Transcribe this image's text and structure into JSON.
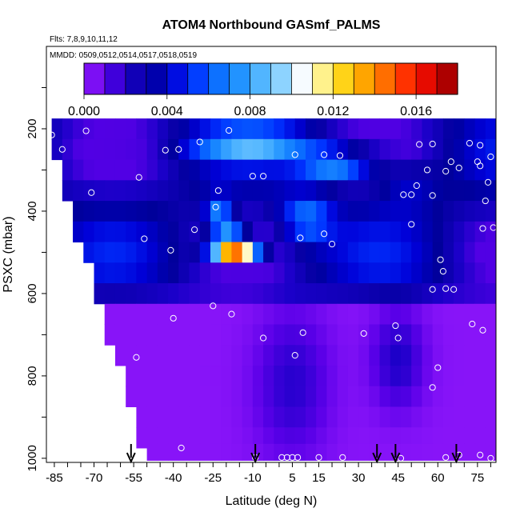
{
  "chart_data": {
    "type": "heatmap",
    "title": "ATOM4 Northbound GASmf_PALMS",
    "subtitle_flights": "Flts: 7,8,9,10,11,12",
    "subtitle_dates": "MMDD: 0509,0512,0514,0517,0518,0519",
    "xlabel": "Latitude (deg N)",
    "ylabel": "PSXC (mbar)",
    "xlim": [
      -88,
      82
    ],
    "ylim": [
      1010,
      0
    ],
    "x_ticks": [
      -85,
      -70,
      -55,
      -40,
      -25,
      -10,
      5,
      15,
      30,
      45,
      60,
      75
    ],
    "y_ticks": [
      200,
      400,
      600,
      800,
      1000
    ],
    "colorbar": {
      "range": [
        0,
        0.018
      ],
      "tick_values": [
        0,
        0.004,
        0.008,
        0.012,
        0.016
      ],
      "tick_labels": [
        "0.000",
        "0.004",
        "0.008",
        "0.012",
        "0.016"
      ],
      "colors": [
        "#9a1cff",
        "#5a00e8",
        "#1a00c8",
        "#00009a",
        "#0000d8",
        "#0033ff",
        "#0a6cff",
        "#1e90ff",
        "#4fb4ff",
        "#8fd4ff",
        "#ffffff",
        "#fff07a",
        "#ffcc00",
        "#ff9800",
        "#ff5c00",
        "#ff1a00",
        "#d40000",
        "#8b0000"
      ]
    },
    "pressure_levels": [
      200,
      250,
      300,
      350,
      400,
      450,
      500,
      550,
      600,
      650,
      700,
      750,
      800,
      850,
      900,
      950,
      990
    ],
    "latitude_bins": [
      -84,
      -80,
      -76,
      -72,
      -68,
      -64,
      -60,
      -56,
      -52,
      -48,
      -44,
      -40,
      -36,
      -32,
      -28,
      -24,
      -20,
      -16,
      -12,
      -8,
      -4,
      0,
      4,
      8,
      12,
      16,
      20,
      24,
      28,
      32,
      36,
      40,
      44,
      48,
      52,
      56,
      60,
      64,
      68,
      72,
      76,
      80
    ],
    "values_summary": {
      "max_value": 0.0155,
      "max_location": {
        "latitude": -17,
        "pressure": 490
      },
      "secondary_high": {
        "latitude": -20,
        "pressure": 440,
        "value": 0.011
      },
      "upper_band_peak": {
        "latitude": -10,
        "pressure": 230,
        "value": 0.0085
      },
      "boundary_layer_value": 0.0003
    },
    "sample_points": [
      {
        "lat": -86,
        "p": 215
      },
      {
        "lat": -73,
        "p": 205
      },
      {
        "lat": -82,
        "p": 250
      },
      {
        "lat": -71,
        "p": 355
      },
      {
        "lat": -53,
        "p": 318
      },
      {
        "lat": -51,
        "p": 467
      },
      {
        "lat": -41,
        "p": 495
      },
      {
        "lat": -43,
        "p": 252
      },
      {
        "lat": -38,
        "p": 250
      },
      {
        "lat": -30,
        "p": 232
      },
      {
        "lat": -32,
        "p": 445
      },
      {
        "lat": -19,
        "p": 204
      },
      {
        "lat": -23,
        "p": 350
      },
      {
        "lat": -24,
        "p": 390
      },
      {
        "lat": -10,
        "p": 315
      },
      {
        "lat": -6,
        "p": 315
      },
      {
        "lat": 6,
        "p": 263
      },
      {
        "lat": 17,
        "p": 263
      },
      {
        "lat": 23,
        "p": 265
      },
      {
        "lat": 8,
        "p": 465
      },
      {
        "lat": 20,
        "p": 480
      },
      {
        "lat": 17,
        "p": 455
      },
      {
        "lat": -40,
        "p": 660
      },
      {
        "lat": -25,
        "p": 630
      },
      {
        "lat": -18,
        "p": 650
      },
      {
        "lat": -6,
        "p": 708
      },
      {
        "lat": 6,
        "p": 750
      },
      {
        "lat": 9,
        "p": 695
      },
      {
        "lat": 32,
        "p": 697
      },
      {
        "lat": 44,
        "p": 678
      },
      {
        "lat": 45,
        "p": 708
      },
      {
        "lat": 50,
        "p": 360
      },
      {
        "lat": 50,
        "p": 432
      },
      {
        "lat": 47,
        "p": 360
      },
      {
        "lat": 52,
        "p": 338
      },
      {
        "lat": 58,
        "p": 237
      },
      {
        "lat": 53,
        "p": 238
      },
      {
        "lat": 56,
        "p": 300
      },
      {
        "lat": 58,
        "p": 362
      },
      {
        "lat": 63,
        "p": 303
      },
      {
        "lat": 65,
        "p": 280
      },
      {
        "lat": 68,
        "p": 295
      },
      {
        "lat": 75,
        "p": 280
      },
      {
        "lat": 76,
        "p": 240
      },
      {
        "lat": 72,
        "p": 235
      },
      {
        "lat": 80,
        "p": 268
      },
      {
        "lat": 79,
        "p": 330
      },
      {
        "lat": 76,
        "p": 290
      },
      {
        "lat": 78,
        "p": 375
      },
      {
        "lat": 77,
        "p": 442
      },
      {
        "lat": 81,
        "p": 440
      },
      {
        "lat": 61,
        "p": 518
      },
      {
        "lat": 62,
        "p": 546
      },
      {
        "lat": 58,
        "p": 590
      },
      {
        "lat": 63,
        "p": 588
      },
      {
        "lat": 66,
        "p": 590
      },
      {
        "lat": 73,
        "p": 674
      },
      {
        "lat": 77,
        "p": 689
      },
      {
        "lat": 60,
        "p": 780
      },
      {
        "lat": 58,
        "p": 828
      },
      {
        "lat": -54,
        "p": 755
      },
      {
        "lat": -37,
        "p": 975
      },
      {
        "lat": -55,
        "p": 998
      },
      {
        "lat": -9,
        "p": 998
      },
      {
        "lat": 1,
        "p": 998
      },
      {
        "lat": 3,
        "p": 998
      },
      {
        "lat": 5,
        "p": 998
      },
      {
        "lat": 7,
        "p": 998
      },
      {
        "lat": 15,
        "p": 998
      },
      {
        "lat": 24,
        "p": 998
      },
      {
        "lat": 46,
        "p": 1000
      },
      {
        "lat": 63,
        "p": 998
      },
      {
        "lat": 68,
        "p": 992
      },
      {
        "lat": 76,
        "p": 992
      },
      {
        "lat": 80,
        "p": 1000
      }
    ],
    "arrows_latitudes": [
      -56,
      -9,
      37,
      44,
      67
    ]
  }
}
